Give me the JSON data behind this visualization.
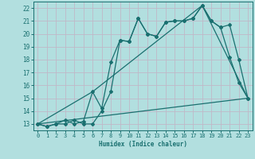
{
  "xlabel": "Humidex (Indice chaleur)",
  "xlim": [
    -0.5,
    23.5
  ],
  "ylim": [
    12.5,
    22.5
  ],
  "xticks": [
    0,
    1,
    2,
    3,
    4,
    5,
    6,
    7,
    8,
    9,
    10,
    11,
    12,
    13,
    14,
    15,
    16,
    17,
    18,
    19,
    20,
    21,
    22,
    23
  ],
  "yticks": [
    13,
    14,
    15,
    16,
    17,
    18,
    19,
    20,
    21,
    22
  ],
  "background_color": "#b2dfdf",
  "grid_color": "#c8e8e8",
  "line_color": "#1a7070",
  "line1_x": [
    0,
    1,
    2,
    3,
    4,
    5,
    6,
    7,
    8,
    9,
    10,
    11,
    12,
    13,
    14,
    15,
    16,
    17,
    18,
    19,
    20,
    21,
    22,
    23
  ],
  "line1_y": [
    13.0,
    12.8,
    13.0,
    13.3,
    13.0,
    13.2,
    15.5,
    14.2,
    17.8,
    19.5,
    19.4,
    21.2,
    20.0,
    19.8,
    20.9,
    21.0,
    21.0,
    21.2,
    22.2,
    21.0,
    20.5,
    20.7,
    18.0,
    15.0
  ],
  "line2_x": [
    0,
    1,
    2,
    3,
    4,
    5,
    6,
    7,
    8,
    9,
    10,
    11,
    12,
    13,
    14,
    15,
    16,
    17,
    18,
    19,
    20,
    21,
    22,
    23
  ],
  "line2_y": [
    13.0,
    12.8,
    13.0,
    13.0,
    13.3,
    13.0,
    13.0,
    14.0,
    15.5,
    19.5,
    19.4,
    21.2,
    20.0,
    19.8,
    20.9,
    21.0,
    21.0,
    21.2,
    22.2,
    21.0,
    20.5,
    18.2,
    16.2,
    15.0
  ],
  "line3_x": [
    0,
    6,
    18,
    23
  ],
  "line3_y": [
    13.0,
    15.5,
    22.2,
    15.0
  ],
  "line4_x": [
    0,
    23
  ],
  "line4_y": [
    13.0,
    15.0
  ]
}
